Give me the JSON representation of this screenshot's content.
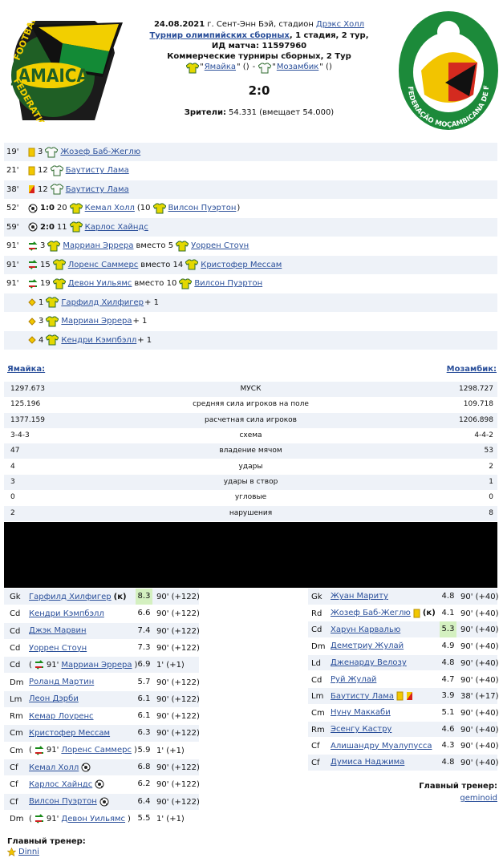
{
  "header": {
    "date": "24.08.2021",
    "place": "г. Сент-Энн Бэй, стадион",
    "stadium": "Дрэкс Холл",
    "tournament": "Турнир олимпийских сборных",
    "stage": ", 1 стадия, 2 тур,",
    "match_id": "ИД матча: 11597960",
    "commercial": "Коммерческие турниры сборных, 2 Тур",
    "open_q": "\"",
    "close_q": "\" ()",
    "dash": "-",
    "home": "Ямайка",
    "away": "Мозамбик",
    "score": "2:0",
    "attendance_label": "Зрители:",
    "attendance": "54.331 (вмещает 54.000)"
  },
  "logos": {
    "home": [
      "FOOTBALL",
      "JAMAICA",
      "FEDERATION"
    ],
    "away": "FEDERAÇÃO MOÇAMBICANA DE FUTEBOL"
  },
  "events": [
    {
      "minute": "19'",
      "icon": "yellow",
      "team": "away",
      "number": "3",
      "player": "Жозеф Баб-Жеглю"
    },
    {
      "minute": "21'",
      "icon": "yellow",
      "team": "away",
      "number": "12",
      "player": "Баутисту Лама"
    },
    {
      "minute": "38'",
      "icon": "red",
      "team": "away",
      "number": "12",
      "player": "Баутисту Лама"
    },
    {
      "minute": "52'",
      "icon": "goal",
      "team": "home",
      "score": "1:0",
      "number": "20",
      "player": "Кемал Холл",
      "extra": "(10",
      "player2": "Вилсон Пуэртон",
      "tail": ")"
    },
    {
      "minute": "59'",
      "icon": "goal",
      "team": "home",
      "score": "2:0",
      "number": "11",
      "player": "Карлос Хайндс"
    },
    {
      "minute": "91'",
      "icon": "sub",
      "team": "home",
      "number": "3",
      "player": "Марриан Эррера",
      "extra": "вместо 5",
      "player2": "Уоррен Стоун"
    },
    {
      "minute": "91'",
      "icon": "sub",
      "team": "home",
      "number": "15",
      "player": "Лоренс Саммерс",
      "extra": "вместо 14",
      "player2": "Кристофер Мессам"
    },
    {
      "minute": "91'",
      "icon": "sub",
      "team": "home",
      "number": "19",
      "player": "Девон Уильямс",
      "extra": "вместо 10",
      "player2": "Вилсон Пуэртон"
    },
    {
      "icon": "assist",
      "team": "home",
      "number": "1",
      "player": "Гарфилд Хилфигер",
      "tail": "+ 1"
    },
    {
      "icon": "assist",
      "team": "home",
      "number": "3",
      "player": "Марриан Эррера",
      "tail": "+ 1"
    },
    {
      "icon": "assist",
      "team": "home",
      "number": "4",
      "player": "Кендри Кэмпбэлл",
      "tail": "+ 1"
    }
  ],
  "stats": {
    "home": "Ямайка:",
    "away": "Мозамбик:",
    "rows": [
      [
        "1297.673",
        "МУСК",
        "1298.727"
      ],
      [
        "125.196",
        "средняя сила игроков на поле",
        "109.718"
      ],
      [
        "1377.159",
        "расчетная сила игроков",
        "1206.898"
      ],
      [
        "3-4-3",
        "схема",
        "4-4-2"
      ],
      [
        "47",
        "владение мячом",
        "53"
      ],
      [
        "4",
        "удары",
        "2"
      ],
      [
        "3",
        "удары в створ",
        "1"
      ],
      [
        "0",
        "угловые",
        "0"
      ],
      [
        "2",
        "нарушения",
        "8"
      ]
    ]
  },
  "lineups": {
    "home": [
      {
        "pos": "Gk",
        "name": "Гарфилд Хилфигер",
        "captain": "(к)",
        "rating": "8.3",
        "best": true,
        "minutes": "90' (+122)"
      },
      {
        "pos": "Cd",
        "name": "Кендри Кэмпбэлл",
        "rating": "6.6",
        "minutes": "90' (+122)"
      },
      {
        "pos": "Cd",
        "name": "Джэк Марвин",
        "rating": "7.4",
        "minutes": "90' (+122)"
      },
      {
        "pos": "Cd",
        "name": "Уоррен Стоун",
        "rating": "7.3",
        "minutes": "90' (+122)"
      },
      {
        "pos": "Cd",
        "sub": {
          "open": "(",
          "minute": "91'",
          "close": ")"
        },
        "name": "Марриан Эррера",
        "rating": "6.9",
        "minutes": "1' (+1)"
      },
      {
        "pos": "Dm",
        "name": "Роланд Мартин",
        "rating": "5.7",
        "minutes": "90' (+122)"
      },
      {
        "pos": "Lm",
        "name": "Леон Дэрби",
        "rating": "6.1",
        "minutes": "90' (+122)"
      },
      {
        "pos": "Rm",
        "name": "Кемар Лоуренс",
        "rating": "6.1",
        "minutes": "90' (+122)"
      },
      {
        "pos": "Cm",
        "name": "Кристофер Мессам",
        "rating": "6.3",
        "minutes": "90' (+122)"
      },
      {
        "pos": "Cm",
        "sub": {
          "open": "(",
          "minute": "91'",
          "close": ")"
        },
        "name": "Лоренс Саммерс",
        "rating": "5.9",
        "minutes": "1' (+1)"
      },
      {
        "pos": "Cf",
        "name": "Кемал Холл",
        "icons": [
          "ball"
        ],
        "rating": "6.8",
        "minutes": "90' (+122)"
      },
      {
        "pos": "Cf",
        "name": "Карлос Хайндс",
        "icons": [
          "ball"
        ],
        "rating": "6.2",
        "minutes": "90' (+122)"
      },
      {
        "pos": "Cf",
        "name": "Вилсон Пуэртон",
        "icons": [
          "ball"
        ],
        "rating": "6.4",
        "minutes": "90' (+122)"
      },
      {
        "pos": "Dm",
        "sub": {
          "open": "(",
          "minute": "91'",
          "close": ")"
        },
        "name": "Девон Уильямс",
        "rating": "5.5",
        "minutes": "1' (+1)"
      }
    ],
    "away": [
      {
        "pos": "Gk",
        "name": "Жуан Мариту",
        "rating": "4.8",
        "minutes": "90' (+40)"
      },
      {
        "pos": "Rd",
        "name": "Жозеф Баб-Жеглю",
        "icons": [
          "yellow"
        ],
        "captain": "(к)",
        "rating": "4.1",
        "minutes": "90' (+40)"
      },
      {
        "pos": "Cd",
        "name": "Харун Карвалью",
        "rating": "5.3",
        "best": true,
        "minutes": "90' (+40)"
      },
      {
        "pos": "Dm",
        "name": "Деметриу Жулай",
        "rating": "4.9",
        "minutes": "90' (+40)"
      },
      {
        "pos": "Ld",
        "name": "Дженарду Велозу",
        "rating": "4.8",
        "minutes": "90' (+40)"
      },
      {
        "pos": "Cd",
        "name": "Руй Жулай",
        "rating": "4.7",
        "minutes": "90' (+40)"
      },
      {
        "pos": "Lm",
        "name": "Баутисту Лама",
        "icons": [
          "yellow",
          "red"
        ],
        "rating": "3.9",
        "minutes": "38' (+17)"
      },
      {
        "pos": "Cm",
        "name": "Нуну Маккаби",
        "rating": "5.1",
        "minutes": "90' (+40)"
      },
      {
        "pos": "Rm",
        "name": "Эсенгу Кастру",
        "rating": "4.6",
        "minutes": "90' (+40)"
      },
      {
        "pos": "Cf",
        "name": "Алишандру Муалупусса",
        "rating": "4.3",
        "minutes": "90' (+40)"
      },
      {
        "pos": "Cf",
        "name": "Думиса Наджима",
        "rating": "4.8",
        "minutes": "90' (+40)"
      }
    ]
  },
  "coaches": {
    "label_home": "Главный тренер:",
    "home": "Dinni",
    "label_away": "Главный тренер:",
    "away": "geminoid"
  }
}
